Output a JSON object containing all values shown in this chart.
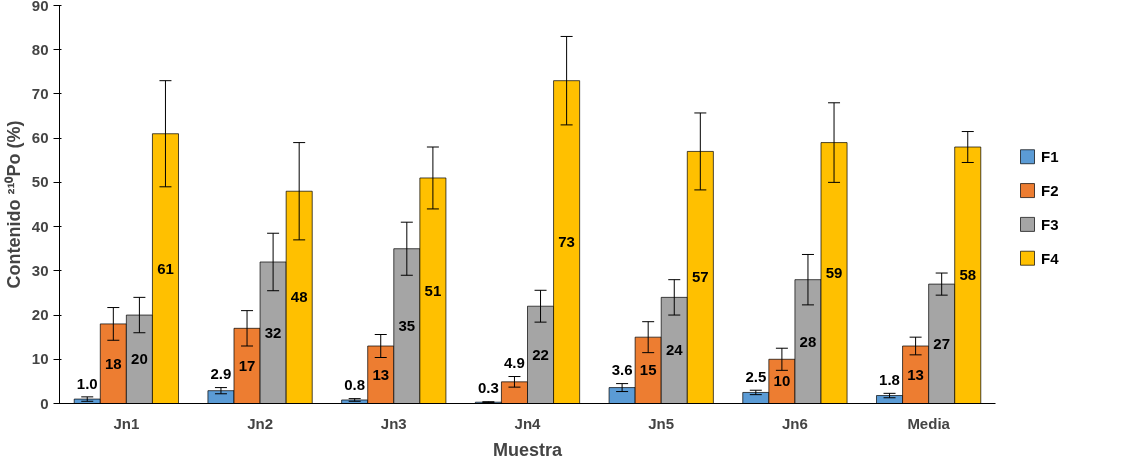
{
  "chart_data": {
    "type": "bar",
    "xlabel": "Muestra",
    "ylabel": "Contenido ²¹⁰Po (%)",
    "categories": [
      "Jn1",
      "Jn2",
      "Jn3",
      "Jn4",
      "Jn5",
      "Jn6",
      "Media"
    ],
    "series": [
      {
        "name": "F1",
        "color": "#5b9bd5",
        "values": [
          1.0,
          2.9,
          0.8,
          0.3,
          3.6,
          2.5,
          1.8
        ],
        "errors": [
          0.5,
          0.7,
          0.3,
          0.1,
          0.9,
          0.5,
          0.5
        ],
        "value_labels": [
          "1.0",
          "2.9",
          "0.8",
          "0.3",
          "3.6",
          "2.5",
          "1.8"
        ]
      },
      {
        "name": "F2",
        "color": "#ed7d31",
        "values": [
          18,
          17,
          13,
          4.9,
          15,
          10,
          13
        ],
        "errors": [
          3.7,
          4,
          2.6,
          1.2,
          3.5,
          2.5,
          2
        ],
        "value_labels": [
          "18",
          "17",
          "13",
          "4.9",
          "15",
          "10",
          "13"
        ]
      },
      {
        "name": "F3",
        "color": "#a5a5a5",
        "values": [
          20,
          32,
          35,
          22,
          24,
          28,
          27
        ],
        "errors": [
          4,
          6.5,
          6,
          3.6,
          4,
          5.7,
          2.5
        ],
        "value_labels": [
          "20",
          "32",
          "35",
          "22",
          "24",
          "28",
          "27"
        ]
      },
      {
        "name": "F4",
        "color": "#ffc000",
        "values": [
          61,
          48,
          51,
          73,
          57,
          59,
          58
        ],
        "errors": [
          12,
          11,
          7,
          10,
          8.7,
          9,
          3.5
        ],
        "value_labels": [
          "61",
          "48",
          "51",
          "73",
          "57",
          "59",
          "58"
        ]
      }
    ],
    "ylim": [
      0,
      90
    ],
    "yticks": [
      0,
      10,
      20,
      30,
      40,
      50,
      60,
      70,
      80,
      90
    ],
    "grid": false,
    "legend": "right"
  }
}
